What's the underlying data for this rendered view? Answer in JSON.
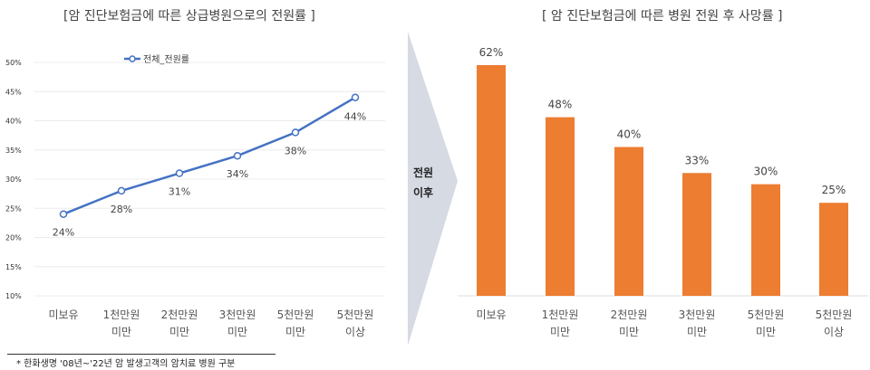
{
  "chart_data": [
    {
      "type": "line",
      "title": "[암 진단보험금에 따른 상급병원으로의 전원률 ]",
      "categories": [
        "미보유",
        "1천만원\n미만",
        "2천만원\n미만",
        "3천만원\n미만",
        "5천만원\n미만",
        "5천만원\n이상"
      ],
      "series": [
        {
          "name": "전체_전원률",
          "values": [
            24,
            28,
            31,
            34,
            38,
            44
          ],
          "color": "#4472C4"
        }
      ],
      "data_labels": [
        "24%",
        "28%",
        "31%",
        "34%",
        "38%",
        "44%"
      ],
      "yticks": [
        "10%",
        "15%",
        "20%",
        "25%",
        "30%",
        "35%",
        "40%",
        "45%",
        "50%"
      ],
      "ylim": [
        10,
        50
      ],
      "grid": true,
      "legend": "top"
    },
    {
      "type": "bar",
      "title": "[ 암 진단보험금에 따른 병원 전원 후 사망률 ]",
      "categories": [
        "미보유",
        "1천만원\n미만",
        "2천만원\n미만",
        "3천만원\n미만",
        "5천만원\n미만",
        "5천만원\n이상"
      ],
      "values": [
        62,
        48,
        40,
        33,
        30,
        25
      ],
      "data_labels": [
        "62%",
        "48%",
        "40%",
        "33%",
        "30%",
        "25%"
      ],
      "color": "#ED7D31",
      "ylim": [
        0,
        62
      ]
    }
  ],
  "arrow": {
    "label_line1": "전원",
    "label_line2": "이후",
    "color": "#D5DAE3"
  },
  "footnote": "* 한화생명 '08년~'22년 암 발생고객의 암치료 병원 구분"
}
